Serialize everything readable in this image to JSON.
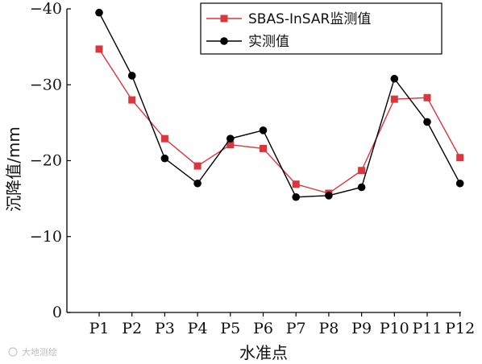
{
  "chart_data": {
    "type": "line",
    "categories": [
      "P1",
      "P2",
      "P3",
      "P4",
      "P5",
      "P6",
      "P7",
      "P8",
      "P9",
      "P10",
      "P11",
      "P12"
    ],
    "xlabel": "水准点",
    "ylabel": "沉降值/mm",
    "ylim": [
      0,
      -40
    ],
    "yticks": [
      0,
      -10,
      -20,
      -30,
      -40
    ],
    "ytick_labels": [
      "0",
      "−10",
      "−20",
      "−30",
      "−40"
    ],
    "grid": false,
    "legend_position": "top-right",
    "series": [
      {
        "name": "SBAS-InSAR监测值",
        "color": "#d9363e",
        "marker": "square",
        "values": [
          -34.7,
          -28.0,
          -22.9,
          -19.3,
          -22.1,
          -21.6,
          -16.9,
          -15.7,
          -18.7,
          -28.1,
          -28.3,
          -20.4
        ]
      },
      {
        "name": "实测值",
        "color": "#000000",
        "marker": "circle",
        "values": [
          -39.5,
          -31.2,
          -20.3,
          -17.0,
          -22.9,
          -24.0,
          -15.2,
          -15.4,
          -16.5,
          -30.8,
          -25.1,
          -17.0
        ]
      }
    ]
  },
  "watermark": "大地测绘"
}
